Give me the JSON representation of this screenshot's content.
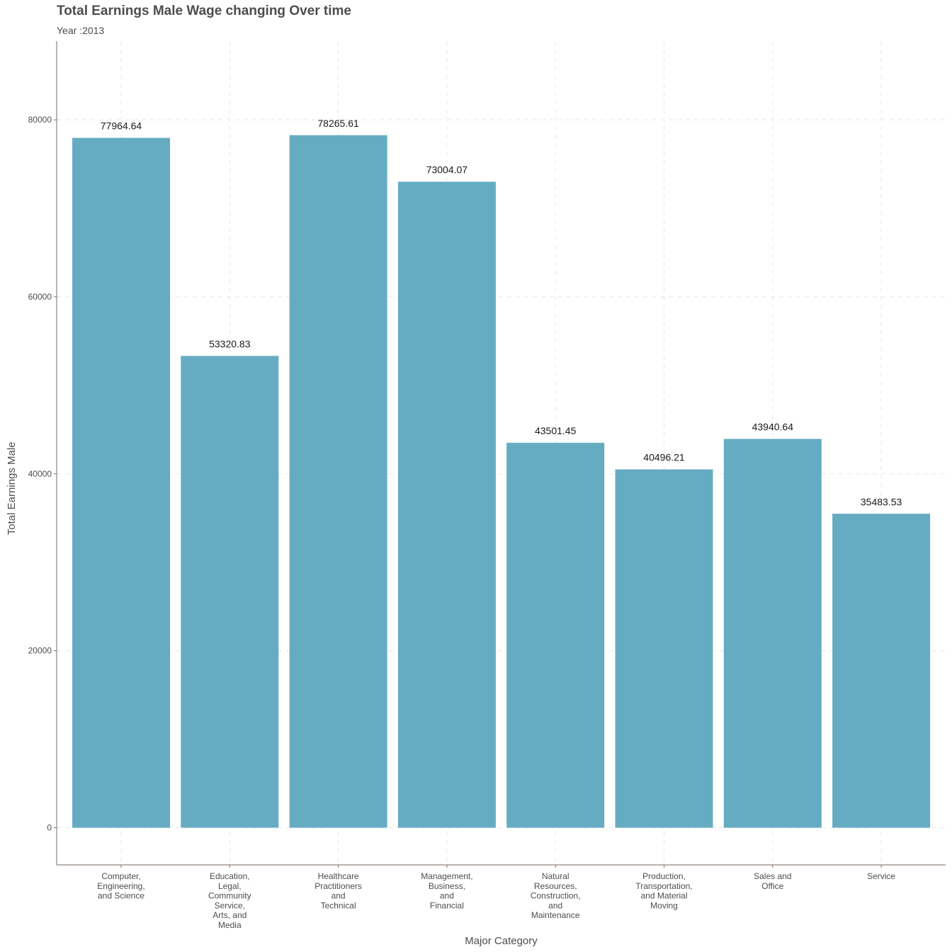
{
  "chart_data": {
    "type": "bar",
    "title": "Total Earnings Male Wage changing Over time",
    "subtitle": "Year :2013",
    "xlabel": "Major Category",
    "ylabel": "Total Earnings Male",
    "categories": [
      "Computer, Engineering, and Science",
      "Education, Legal, Community Service, Arts, and Media",
      "Healthcare Practitioners and Technical",
      "Management, Business, and Financial",
      "Natural Resources, Construction, and Maintenance",
      "Production, Transportation, and Material Moving",
      "Sales and Office",
      "Service"
    ],
    "category_tick_lines": [
      [
        "Computer,",
        "Engineering,",
        "and Science"
      ],
      [
        "Education,",
        "Legal,",
        "Community",
        "Service,",
        "Arts, and",
        "Media"
      ],
      [
        "Healthcare",
        "Practitioners",
        "and",
        "Technical"
      ],
      [
        "Management,",
        "Business,",
        "and",
        "Financial"
      ],
      [
        "Natural",
        "Resources,",
        "Construction,",
        "and",
        "Maintenance"
      ],
      [
        "Production,",
        "Transportation,",
        "and Material",
        "Moving"
      ],
      [
        "Sales and",
        "Office"
      ],
      [
        "Service"
      ]
    ],
    "values": [
      77964.64,
      53320.83,
      78265.61,
      73004.07,
      43501.45,
      40496.21,
      43940.64,
      35483.53
    ],
    "value_labels": [
      "77964.64",
      "53320.83",
      "78265.61",
      "73004.07",
      "43501.45",
      "40496.21",
      "43940.64",
      "35483.53"
    ],
    "ylim": [
      -4200,
      88900
    ],
    "y_ticks": [
      0,
      20000,
      40000,
      60000,
      80000
    ],
    "y_tick_labels": [
      "0",
      "20000",
      "40000",
      "60000",
      "80000"
    ],
    "bar_color": "#65acc2",
    "grid": true,
    "grid_style": "dashed",
    "legend": "none"
  }
}
